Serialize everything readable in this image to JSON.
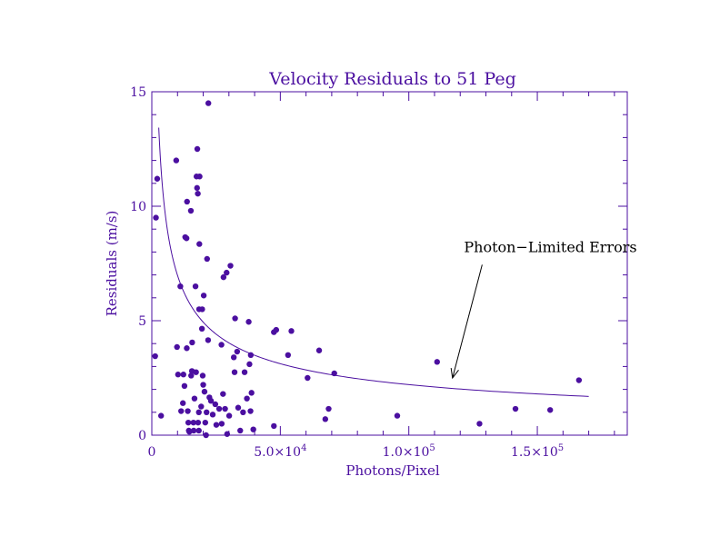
{
  "chart_data": {
    "type": "scatter",
    "title": "Velocity Residuals to 51 Peg",
    "xlabel": "Photons/Pixel",
    "ylabel": "Residuals  (m/s)",
    "xlim": [
      0,
      185000
    ],
    "ylim": [
      0,
      15
    ],
    "x_ticks": [
      {
        "value": 0,
        "label": "0"
      },
      {
        "value": 50000,
        "label": "5.0×10",
        "exp": "4"
      },
      {
        "value": 100000,
        "label": "1.0×10",
        "exp": "5"
      },
      {
        "value": 150000,
        "label": "1.5×10",
        "exp": "5"
      }
    ],
    "y_ticks": [
      {
        "value": 0,
        "label": "0"
      },
      {
        "value": 5,
        "label": "5"
      },
      {
        "value": 10,
        "label": "10"
      },
      {
        "value": 15,
        "label": "15"
      }
    ],
    "grid": false,
    "annotation": {
      "text": "Photon−Limited Errors",
      "x": 125000,
      "y": 8.2,
      "arrow_to_x": 117000,
      "arrow_to_y": 2.5
    },
    "curve": {
      "name": "Photon-Limited Errors",
      "x_start": 2700,
      "x_end": 170000,
      "coefficient": 698
    },
    "series": [
      {
        "points": [
          [
            1300,
            3.45
          ],
          [
            1600,
            9.5
          ],
          [
            2100,
            11.2
          ],
          [
            3600,
            0.85
          ],
          [
            9500,
            12.0
          ],
          [
            9800,
            3.85
          ],
          [
            10200,
            2.65
          ],
          [
            11100,
            6.5
          ],
          [
            11400,
            1.05
          ],
          [
            12100,
            1.4
          ],
          [
            12300,
            2.65
          ],
          [
            12700,
            2.15
          ],
          [
            13000,
            8.65
          ],
          [
            13500,
            8.6
          ],
          [
            13600,
            3.8
          ],
          [
            13700,
            10.2
          ],
          [
            14000,
            1.05
          ],
          [
            14200,
            0.55
          ],
          [
            14400,
            0.2
          ],
          [
            14600,
            0.15
          ],
          [
            15300,
            2.6
          ],
          [
            15200,
            9.8
          ],
          [
            15700,
            4.05
          ],
          [
            15600,
            2.8
          ],
          [
            16200,
            0.55
          ],
          [
            16300,
            0.2
          ],
          [
            16600,
            1.6
          ],
          [
            17000,
            6.5
          ],
          [
            17200,
            2.75
          ],
          [
            17400,
            11.3
          ],
          [
            17600,
            10.8
          ],
          [
            17700,
            12.5
          ],
          [
            17900,
            10.55
          ],
          [
            18000,
            0.55
          ],
          [
            18300,
            1.0
          ],
          [
            18400,
            5.5
          ],
          [
            18500,
            8.35
          ],
          [
            18600,
            11.3
          ],
          [
            18300,
            0.2
          ],
          [
            19200,
            1.25
          ],
          [
            19500,
            4.65
          ],
          [
            19600,
            5.5
          ],
          [
            19800,
            2.6
          ],
          [
            20000,
            2.2
          ],
          [
            20200,
            6.1
          ],
          [
            20500,
            1.9
          ],
          [
            20800,
            0.55
          ],
          [
            21100,
            0.0
          ],
          [
            21300,
            1.0
          ],
          [
            21500,
            7.7
          ],
          [
            21900,
            4.15
          ],
          [
            22000,
            14.5
          ],
          [
            22400,
            1.65
          ],
          [
            23000,
            1.5
          ],
          [
            23700,
            0.9
          ],
          [
            24700,
            1.35
          ],
          [
            25100,
            0.45
          ],
          [
            26200,
            1.15
          ],
          [
            27100,
            3.95
          ],
          [
            27200,
            0.5
          ],
          [
            27700,
            1.8
          ],
          [
            27900,
            6.9
          ],
          [
            28500,
            1.15
          ],
          [
            29100,
            7.1
          ],
          [
            29300,
            0.05
          ],
          [
            30100,
            0.85
          ],
          [
            30600,
            7.4
          ],
          [
            31900,
            3.4
          ],
          [
            32200,
            2.75
          ],
          [
            32400,
            5.1
          ],
          [
            33200,
            3.65
          ],
          [
            33600,
            1.2
          ],
          [
            34400,
            0.2
          ],
          [
            35500,
            1.0
          ],
          [
            36100,
            2.75
          ],
          [
            37000,
            1.6
          ],
          [
            37700,
            4.95
          ],
          [
            38000,
            3.1
          ],
          [
            38400,
            1.05
          ],
          [
            38500,
            3.5
          ],
          [
            38800,
            1.85
          ],
          [
            39500,
            0.25
          ],
          [
            47500,
            4.5
          ],
          [
            47500,
            0.4
          ],
          [
            48400,
            4.6
          ],
          [
            53000,
            3.5
          ],
          [
            54300,
            4.55
          ],
          [
            60600,
            2.5
          ],
          [
            65100,
            3.7
          ],
          [
            67500,
            0.7
          ],
          [
            68800,
            1.15
          ],
          [
            71000,
            2.7
          ],
          [
            95500,
            0.85
          ],
          [
            111000,
            3.2
          ],
          [
            127500,
            0.5
          ],
          [
            141500,
            1.15
          ],
          [
            155000,
            1.1
          ],
          [
            166200,
            2.4
          ]
        ]
      }
    ]
  }
}
